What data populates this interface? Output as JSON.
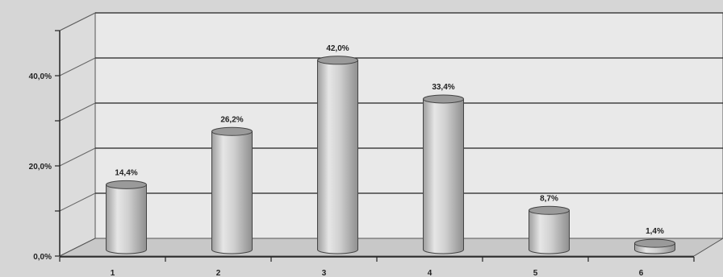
{
  "chart_data": {
    "type": "bar",
    "style": "3d-cylinder",
    "categories": [
      "1",
      "2",
      "3",
      "4",
      "5",
      "6"
    ],
    "values": [
      14.4,
      26.2,
      42.0,
      33.4,
      8.7,
      1.4
    ],
    "data_labels": [
      "14,4%",
      "26,2%",
      "42,0%",
      "33,4%",
      "8,7%",
      "1,4%"
    ],
    "ylim": [
      0,
      50
    ],
    "yticks": [
      {
        "value": 0,
        "label": "0,0%"
      },
      {
        "value": 20,
        "label": "20,0%"
      },
      {
        "value": 40,
        "label": "40,0%"
      }
    ],
    "minor_yticks": [
      10,
      30,
      50
    ],
    "grid": true,
    "legend": "none",
    "colors": {
      "bar_fill": "#d2d2d2",
      "bar_top": "#9a9a9a",
      "wall": "#e9e9e9",
      "floor": "#c8c8c8",
      "gridline": "#222222"
    }
  }
}
